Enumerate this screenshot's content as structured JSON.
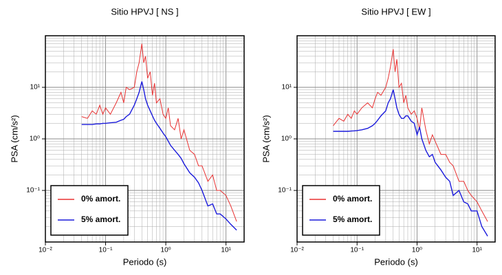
{
  "chart_data": [
    {
      "type": "line",
      "title": "Sitio HPVJ [ NS ]",
      "x_label": "Periodo (s)",
      "y_label": "PSA (cm/s²)",
      "log_x": true,
      "log_y": true,
      "grid": true,
      "legend": "lower left",
      "xlim": [
        0.01,
        20
      ],
      "ylim": [
        0.01,
        100
      ],
      "xticks": [
        {
          "value": 0.01,
          "label": "10⁻²"
        },
        {
          "value": 0.1,
          "label": "10⁻¹"
        },
        {
          "value": 1,
          "label": "10⁰"
        },
        {
          "value": 10,
          "label": "10¹"
        }
      ],
      "yticks": [
        {
          "value": 0.1,
          "label": "10⁻¹"
        },
        {
          "value": 1,
          "label": "10⁰"
        },
        {
          "value": 10,
          "label": "10¹"
        }
      ],
      "x": [
        0.04,
        0.05,
        0.06,
        0.07,
        0.08,
        0.09,
        0.1,
        0.12,
        0.15,
        0.18,
        0.2,
        0.22,
        0.25,
        0.3,
        0.33,
        0.36,
        0.4,
        0.43,
        0.46,
        0.5,
        0.55,
        0.6,
        0.65,
        0.7,
        0.8,
        0.9,
        1,
        1.1,
        1.2,
        1.4,
        1.6,
        1.8,
        2,
        2.5,
        3,
        3.5,
        4,
        5,
        6,
        7,
        8,
        10,
        12,
        15
      ],
      "series": [
        {
          "name": "0% amort.",
          "color": "#e83030",
          "values": [
            2.7,
            2.5,
            3.5,
            3,
            4.5,
            3,
            4,
            3,
            5,
            8,
            5,
            10,
            9,
            10,
            20,
            30,
            70,
            30,
            40,
            15,
            20,
            7,
            12,
            5,
            6,
            3,
            2.5,
            4,
            1.8,
            1.5,
            2.5,
            1,
            1.5,
            0.6,
            0.5,
            0.3,
            0.3,
            0.15,
            0.2,
            0.1,
            0.1,
            0.08,
            0.05,
            0.025
          ]
        },
        {
          "name": "5% amort.",
          "color": "#1a1adc",
          "values": [
            1.9,
            1.9,
            1.9,
            1.95,
            1.95,
            2.0,
            2.0,
            2.05,
            2.1,
            2.3,
            2.4,
            2.7,
            3.0,
            4.5,
            6,
            8,
            13,
            9,
            6,
            4.5,
            3.5,
            2.8,
            2.3,
            2.0,
            1.6,
            1.3,
            1.1,
            0.9,
            0.75,
            0.6,
            0.5,
            0.42,
            0.33,
            0.22,
            0.18,
            0.14,
            0.1,
            0.05,
            0.055,
            0.035,
            0.035,
            0.028,
            0.022,
            0.017
          ]
        }
      ]
    },
    {
      "type": "line",
      "title": "Sitio HPVJ [ EW ]",
      "x_label": "Periodo (s)",
      "y_label": "PSA (cm/s²)",
      "log_x": true,
      "log_y": true,
      "grid": true,
      "legend": "lower left",
      "xlim": [
        0.01,
        20
      ],
      "ylim": [
        0.01,
        100
      ],
      "xticks": [
        {
          "value": 0.01,
          "label": "10⁻²"
        },
        {
          "value": 0.1,
          "label": "10⁻¹"
        },
        {
          "value": 1,
          "label": "10⁰"
        },
        {
          "value": 10,
          "label": "10¹"
        }
      ],
      "yticks": [
        {
          "value": 0.1,
          "label": "10⁻¹"
        },
        {
          "value": 1,
          "label": "10⁰"
        },
        {
          "value": 10,
          "label": "10¹"
        }
      ],
      "x": [
        0.04,
        0.05,
        0.06,
        0.07,
        0.08,
        0.09,
        0.1,
        0.12,
        0.15,
        0.18,
        0.2,
        0.22,
        0.25,
        0.3,
        0.33,
        0.36,
        0.4,
        0.43,
        0.46,
        0.5,
        0.55,
        0.6,
        0.65,
        0.7,
        0.8,
        0.9,
        1,
        1.1,
        1.2,
        1.4,
        1.6,
        1.8,
        2,
        2.5,
        3,
        3.5,
        4,
        5,
        6,
        7,
        8,
        10,
        12,
        15
      ],
      "series": [
        {
          "name": "0% amort.",
          "color": "#e83030",
          "values": [
            1.8,
            2.5,
            2.2,
            3,
            2.5,
            3.5,
            3,
            4,
            5,
            4,
            6,
            8,
            7,
            10,
            15,
            25,
            55,
            20,
            35,
            10,
            12,
            5,
            7,
            4,
            3,
            3.5,
            2.5,
            1.5,
            4,
            1.5,
            0.8,
            1.2,
            0.9,
            0.5,
            0.5,
            0.35,
            0.3,
            0.15,
            0.15,
            0.1,
            0.08,
            0.06,
            0.04,
            0.025
          ]
        },
        {
          "name": "5% amort.",
          "color": "#1a1adc",
          "values": [
            1.4,
            1.4,
            1.4,
            1.4,
            1.42,
            1.43,
            1.45,
            1.5,
            1.6,
            1.8,
            2.0,
            2.3,
            2.8,
            3.5,
            5,
            6,
            9,
            6,
            4,
            3,
            2.5,
            2.5,
            2.8,
            2.8,
            2.2,
            2.0,
            1.2,
            1.7,
            1.0,
            0.6,
            0.45,
            0.5,
            0.35,
            0.25,
            0.18,
            0.15,
            0.08,
            0.1,
            0.06,
            0.055,
            0.04,
            0.04,
            0.02,
            0.013
          ]
        }
      ]
    }
  ]
}
